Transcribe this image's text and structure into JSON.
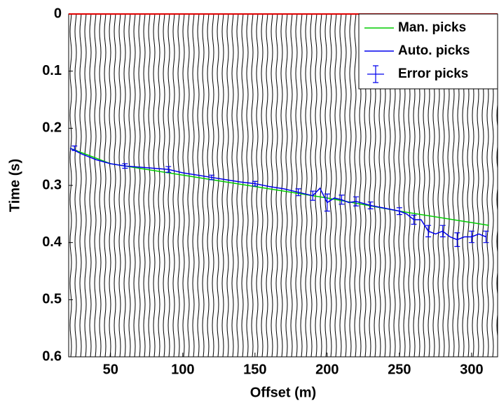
{
  "chart_data": {
    "type": "line",
    "xlabel": "Offset (m)",
    "ylabel": "Time (s)",
    "xlim": [
      21,
      318
    ],
    "xticks": [
      50,
      100,
      150,
      200,
      250,
      300
    ],
    "ylim": [
      0,
      0.6
    ],
    "yticks": [
      0,
      0.1,
      0.2,
      0.3,
      0.4,
      0.5,
      0.6
    ],
    "y_inverted": true,
    "legend": "upper right",
    "hlines": [
      {
        "y": 0,
        "color": "#e00000"
      }
    ],
    "series": [
      {
        "name": "Man. picks",
        "color": "#00cc00",
        "x": [
          22,
          50,
          100,
          150,
          200,
          250,
          300,
          312
        ],
        "values": [
          0.235,
          0.262,
          0.282,
          0.302,
          0.322,
          0.345,
          0.365,
          0.37
        ]
      },
      {
        "name": "Auto. picks",
        "color": "#0000ee",
        "x": [
          22,
          30,
          40,
          50,
          60,
          70,
          80,
          90,
          100,
          110,
          120,
          130,
          140,
          150,
          160,
          170,
          180,
          190,
          195,
          200,
          205,
          210,
          215,
          220,
          230,
          240,
          250,
          255,
          260,
          265,
          270,
          275,
          280,
          285,
          290,
          295,
          300,
          305,
          310
        ],
        "values": [
          0.235,
          0.245,
          0.255,
          0.262,
          0.266,
          0.268,
          0.27,
          0.272,
          0.278,
          0.282,
          0.286,
          0.29,
          0.294,
          0.297,
          0.302,
          0.306,
          0.312,
          0.318,
          0.305,
          0.33,
          0.322,
          0.325,
          0.33,
          0.328,
          0.335,
          0.34,
          0.345,
          0.35,
          0.36,
          0.36,
          0.38,
          0.385,
          0.38,
          0.39,
          0.395,
          0.39,
          0.39,
          0.385,
          0.39
        ]
      },
      {
        "name": "Error picks",
        "color": "#0000ee",
        "type": "errorbar",
        "x": [
          25,
          60,
          90,
          120,
          150,
          180,
          190,
          200,
          210,
          220,
          230,
          250,
          260,
          270,
          280,
          290,
          300,
          310
        ],
        "values": [
          0.235,
          0.266,
          0.272,
          0.286,
          0.297,
          0.312,
          0.318,
          0.33,
          0.325,
          0.328,
          0.335,
          0.345,
          0.36,
          0.38,
          0.38,
          0.395,
          0.39,
          0.39
        ],
        "errors": [
          0.004,
          0.004,
          0.005,
          0.004,
          0.004,
          0.006,
          0.008,
          0.015,
          0.008,
          0.008,
          0.006,
          0.006,
          0.008,
          0.01,
          0.01,
          0.012,
          0.01,
          0.01
        ]
      }
    ]
  }
}
